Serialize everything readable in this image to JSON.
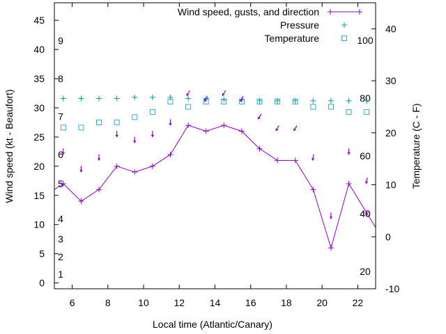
{
  "chart_data": {
    "type": "line",
    "xlabel": "Local time (Atlantic/Canary)",
    "ylabel_left": "Wind speed (kt - Beaufort)",
    "ylabel_right": "Temperature (C - F)",
    "xlim": [
      5,
      23
    ],
    "ylim": [
      -1,
      48
    ],
    "y2lim": [
      -10,
      45
    ],
    "x_ticks": [
      "6",
      "8",
      "10",
      "12",
      "14",
      "16",
      "18",
      "20",
      "22"
    ],
    "y_ticks": [
      "0",
      "5",
      "10",
      "15",
      "20",
      "25",
      "30",
      "35",
      "40",
      "45"
    ],
    "y2_ticks": [
      "-10",
      "0",
      "10",
      "20",
      "30",
      "40"
    ],
    "beaufort_labels": [
      "1",
      "2",
      "3",
      "4",
      "5",
      "6",
      "7",
      "8",
      "9"
    ],
    "fahrenheit_labels": [
      "20",
      "40",
      "60",
      "80",
      "100"
    ],
    "legend_position": "top-right",
    "series": [
      {
        "name": "Wind speed, gusts, and direction",
        "color": "#8b00c8",
        "x": [
          5.5,
          6.5,
          7.5,
          8.5,
          9.5,
          10.5,
          11.5,
          12.5,
          13.5,
          14.5,
          15.5,
          16.5,
          17.5,
          18.5,
          19.5,
          20.5,
          21.5,
          22.5
        ],
        "y": [
          17,
          14,
          16,
          20,
          19,
          20,
          22,
          27,
          26,
          27,
          26,
          23,
          21,
          21,
          16,
          6,
          17,
          12
        ],
        "direction_deg": [
          0,
          0,
          0,
          0,
          0,
          0,
          0,
          30,
          30,
          30,
          30,
          30,
          30,
          30,
          10,
          0,
          0,
          10
        ]
      },
      {
        "name": "Pressure",
        "color": "#009b8a",
        "x": [
          5.5,
          6.5,
          7.5,
          8.5,
          9.5,
          10.5,
          11.5,
          12.5,
          13.5,
          14.5,
          15.5,
          16.5,
          17.5,
          18.5,
          19.5,
          20.5,
          21.5,
          22.5
        ],
        "y": [
          31.6,
          31.6,
          31.6,
          31.6,
          31.8,
          31.8,
          31.8,
          31.6,
          31.6,
          31.4,
          31.4,
          31.2,
          31.2,
          31.2,
          31.2,
          31.2,
          31.2,
          31.2
        ]
      },
      {
        "name": "Temperature",
        "color": "#3aa6d8",
        "axis": "right",
        "x": [
          5.5,
          6.5,
          7.5,
          8.5,
          9.5,
          10.5,
          11.5,
          12.5,
          13.5,
          14.5,
          15.5,
          16.5,
          17.5,
          18.5,
          19.5,
          20.5,
          21.5,
          22.5
        ],
        "y": [
          21,
          21,
          22,
          22,
          23,
          24,
          26,
          25,
          26,
          26,
          26,
          26,
          26,
          26,
          25,
          25,
          24,
          24
        ]
      }
    ]
  }
}
